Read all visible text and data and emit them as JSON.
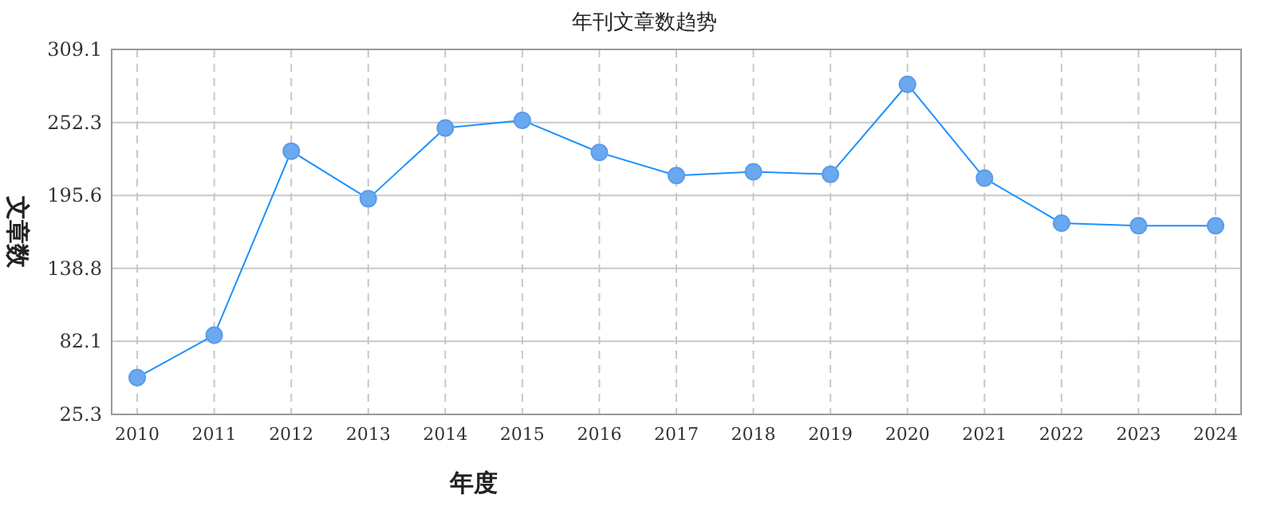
{
  "chart_data": {
    "type": "line",
    "title": "年刊文章数趋势",
    "xlabel": "年度",
    "ylabel": "文章数",
    "categories": [
      "2010",
      "2011",
      "2012",
      "2013",
      "2014",
      "2015",
      "2016",
      "2017",
      "2018",
      "2019",
      "2020",
      "2021",
      "2022",
      "2023",
      "2024"
    ],
    "series": [
      {
        "color": "#1e90ff",
        "values": [
          54,
          87,
          230,
          193,
          248,
          254,
          229,
          211,
          214,
          212,
          282,
          209,
          174,
          172,
          172
        ]
      }
    ],
    "ylim": [
      25.3,
      309.1
    ],
    "yticks": [
      25.3,
      82.1,
      138.8,
      195.6,
      252.3,
      309.1
    ],
    "grid": true,
    "marker": "circle",
    "line_style": "solid"
  }
}
